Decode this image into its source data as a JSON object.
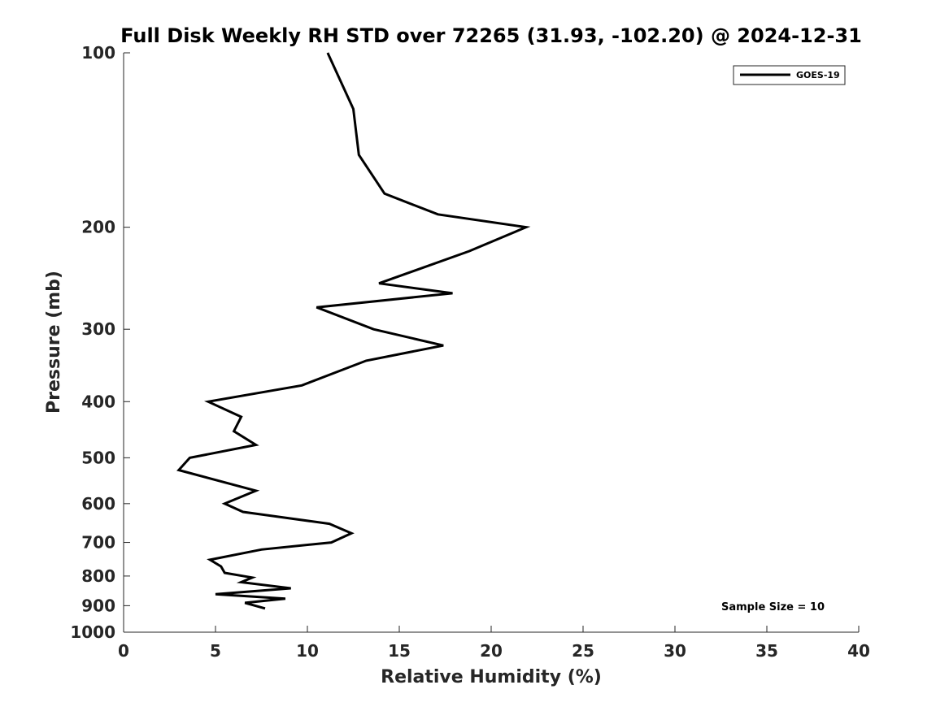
{
  "chart_data": {
    "type": "line",
    "title": "Full Disk Weekly RH STD over 72265 (31.93, -102.20) @ 2024-12-31",
    "xlabel": "Relative Humidity (%)",
    "ylabel": "Pressure (mb)",
    "xlim": [
      0,
      40
    ],
    "ylim": [
      100,
      1000
    ],
    "y_scale": "log",
    "y_reversed": true,
    "x_ticks": [
      0,
      5,
      10,
      15,
      20,
      25,
      30,
      35,
      40
    ],
    "x_tick_labels": [
      "0",
      "5",
      "10",
      "15",
      "20",
      "25",
      "30",
      "35",
      "40"
    ],
    "y_ticks": [
      100,
      200,
      300,
      400,
      500,
      600,
      700,
      800,
      900,
      1000
    ],
    "y_tick_labels": [
      "100",
      "200",
      "300",
      "400",
      "500",
      "600",
      "700",
      "800",
      "900",
      "1000"
    ],
    "legend_position": "top-right",
    "series": [
      {
        "name": "GOES-19",
        "color": "#000000",
        "points": [
          {
            "x": 11.1,
            "y": 100
          },
          {
            "x": 12.5,
            "y": 125
          },
          {
            "x": 12.8,
            "y": 150
          },
          {
            "x": 14.2,
            "y": 175
          },
          {
            "x": 17.1,
            "y": 190
          },
          {
            "x": 21.9,
            "y": 200
          },
          {
            "x": 18.8,
            "y": 220
          },
          {
            "x": 13.9,
            "y": 250
          },
          {
            "x": 17.9,
            "y": 260
          },
          {
            "x": 10.5,
            "y": 275
          },
          {
            "x": 13.6,
            "y": 300
          },
          {
            "x": 17.4,
            "y": 320
          },
          {
            "x": 13.2,
            "y": 340
          },
          {
            "x": 9.7,
            "y": 375
          },
          {
            "x": 4.6,
            "y": 400
          },
          {
            "x": 6.4,
            "y": 425
          },
          {
            "x": 6.0,
            "y": 450
          },
          {
            "x": 7.2,
            "y": 475
          },
          {
            "x": 3.6,
            "y": 500
          },
          {
            "x": 3.0,
            "y": 525
          },
          {
            "x": 7.2,
            "y": 570
          },
          {
            "x": 5.5,
            "y": 600
          },
          {
            "x": 6.5,
            "y": 620
          },
          {
            "x": 11.2,
            "y": 650
          },
          {
            "x": 12.4,
            "y": 675
          },
          {
            "x": 11.3,
            "y": 700
          },
          {
            "x": 7.5,
            "y": 720
          },
          {
            "x": 4.7,
            "y": 750
          },
          {
            "x": 5.3,
            "y": 770
          },
          {
            "x": 5.5,
            "y": 790
          },
          {
            "x": 7.0,
            "y": 805
          },
          {
            "x": 6.4,
            "y": 820
          },
          {
            "x": 9.1,
            "y": 840
          },
          {
            "x": 5.0,
            "y": 860
          },
          {
            "x": 8.8,
            "y": 875
          },
          {
            "x": 6.6,
            "y": 890
          },
          {
            "x": 7.7,
            "y": 910
          }
        ]
      }
    ],
    "annotations": [
      "Sample Size = 10"
    ]
  }
}
